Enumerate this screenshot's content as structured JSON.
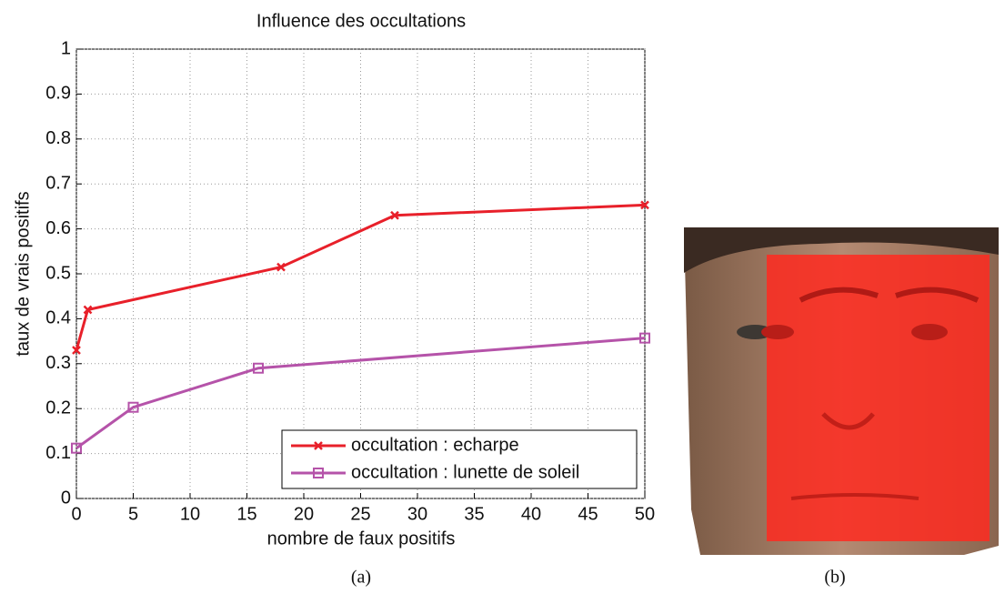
{
  "chart_data": {
    "type": "line",
    "title": "Influence des occultations",
    "xlabel": "nombre de faux positifs",
    "ylabel": "taux de vrais positifs",
    "xlim": [
      0,
      50
    ],
    "xticks": [
      0,
      5,
      10,
      15,
      20,
      25,
      30,
      35,
      40,
      45,
      50
    ],
    "ylim": [
      0,
      1
    ],
    "yticks": [
      0,
      0.1,
      0.2,
      0.3,
      0.4,
      0.5,
      0.6,
      0.7,
      0.8,
      0.9,
      1
    ],
    "grid": true,
    "legend": "lower right",
    "series": [
      {
        "name": "occultation : echarpe",
        "color": "#e8202a",
        "marker": "x",
        "x": [
          0,
          1,
          18,
          28,
          50
        ],
        "values": [
          0.33,
          0.42,
          0.515,
          0.63,
          0.653
        ]
      },
      {
        "name": "occultation : lunette de soleil",
        "color": "#b553a9",
        "marker": "s",
        "x": [
          0,
          5,
          16,
          50
        ],
        "values": [
          0.112,
          0.203,
          0.29,
          0.357
        ]
      }
    ]
  },
  "captions": [
    "(a)",
    "(b)"
  ]
}
